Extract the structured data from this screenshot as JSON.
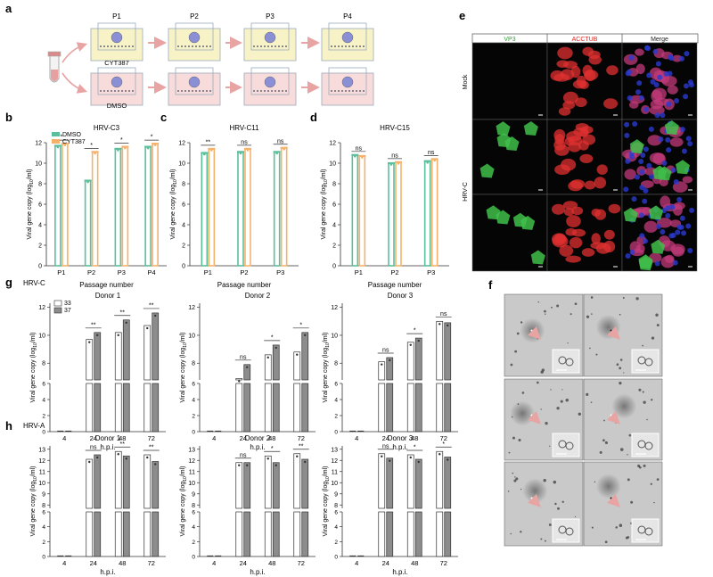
{
  "panels": {
    "a": {
      "letter": "a",
      "p1": "P1",
      "p2": "P2",
      "p3": "P3",
      "p4": "P4",
      "cyt": "CYT387",
      "dmso": "DMSO"
    },
    "b": {
      "letter": "b"
    },
    "c": {
      "letter": "c"
    },
    "d": {
      "letter": "d"
    },
    "e": {
      "letter": "e",
      "col1": "VP3",
      "col2": "ACCTUB",
      "col3": "Merge",
      "row_mock": "Mock",
      "row_hrv": "HRV-C"
    },
    "f": {
      "letter": "f"
    },
    "g": {
      "letter": "g",
      "group_label": "HRV-C"
    },
    "h": {
      "letter": "h",
      "group_label": "HRV-A"
    }
  },
  "colors": {
    "dmso": "#5bbf9b",
    "cyt387": "#f6b26b",
    "t33": "#ffffff",
    "t37": "#8c8c8c",
    "arrow": "#e8a3a3",
    "well_yellow": "#f7f3c6",
    "well_red": "#f8dcdc",
    "vp3": "#3fbf4a",
    "acctub": "#e03030"
  },
  "chart_data": [
    {
      "id": "b",
      "type": "bar",
      "title": "HRV-C3",
      "xlabel": "Passage number",
      "ylabel": "Viral gene copy (log10/ml)",
      "ylim": [
        0,
        12
      ],
      "yticks": [
        0,
        2,
        4,
        6,
        8,
        10,
        12
      ],
      "categories": [
        "P1",
        "P2",
        "P3",
        "P4"
      ],
      "legend": [
        "DMSO",
        "CYT387"
      ],
      "series": [
        {
          "name": "DMSO",
          "values": [
            11.7,
            8.3,
            11.4,
            11.6
          ]
        },
        {
          "name": "CYT387",
          "values": [
            11.9,
            11.1,
            11.6,
            11.9
          ]
        }
      ],
      "sig": [
        "*",
        "*",
        "*",
        "*"
      ]
    },
    {
      "id": "c",
      "type": "bar",
      "title": "HRV-C11",
      "xlabel": "Passage number",
      "ylabel": "Viral gene copy (log10/ml)",
      "ylim": [
        0,
        12
      ],
      "yticks": [
        0,
        2,
        4,
        6,
        8,
        10,
        12
      ],
      "categories": [
        "P1",
        "P2",
        "P3"
      ],
      "series": [
        {
          "name": "DMSO",
          "values": [
            11.0,
            11.1,
            11.1
          ]
        },
        {
          "name": "CYT387",
          "values": [
            11.4,
            11.4,
            11.5
          ]
        }
      ],
      "sig": [
        "**",
        "ns",
        "ns"
      ]
    },
    {
      "id": "d",
      "type": "bar",
      "title": "HRV-C15",
      "xlabel": "Passage number",
      "ylabel": "Viral gene copy (log10/ml)",
      "ylim": [
        0,
        12
      ],
      "yticks": [
        0,
        2,
        4,
        6,
        8,
        10,
        12
      ],
      "categories": [
        "P1",
        "P2",
        "P3"
      ],
      "series": [
        {
          "name": "DMSO",
          "values": [
            10.8,
            10.0,
            10.2
          ]
        },
        {
          "name": "CYT387",
          "values": [
            10.7,
            10.1,
            10.4
          ]
        }
      ],
      "sig": [
        "ns",
        "ns",
        "ns"
      ]
    },
    {
      "id": "g1",
      "type": "bar",
      "title": "Donor 1",
      "xlabel": "h.p.i.",
      "ylabel": "Viral gene copy (log10/ml)",
      "legend": [
        "33",
        "37"
      ],
      "categories": [
        "4",
        "24",
        "48",
        "72"
      ],
      "yticks_low": [
        0,
        2,
        4,
        6
      ],
      "yticks_high": [
        8,
        10,
        12
      ],
      "series": [
        {
          "name": "33",
          "values": [
            0,
            9.7,
            10.2,
            10.7
          ]
        },
        {
          "name": "37",
          "values": [
            0,
            10.2,
            11.1,
            11.6
          ]
        }
      ],
      "sig": [
        "",
        "**",
        "**",
        "**"
      ]
    },
    {
      "id": "g2",
      "type": "bar",
      "title": "Donor 2",
      "xlabel": "h.p.i.",
      "ylabel": "Viral gene copy (log10/ml)",
      "categories": [
        "4",
        "24",
        "48",
        "72"
      ],
      "yticks_low": [
        0,
        2,
        4,
        6
      ],
      "yticks_high": [
        8,
        10,
        12
      ],
      "series": [
        {
          "name": "33",
          "values": [
            0,
            6.9,
            8.6,
            8.8
          ]
        },
        {
          "name": "37",
          "values": [
            0,
            7.9,
            9.3,
            10.2
          ]
        }
      ],
      "sig": [
        "",
        "ns",
        "*",
        "*"
      ]
    },
    {
      "id": "g3",
      "type": "bar",
      "title": "Donor 3",
      "xlabel": "h.p.i.",
      "ylabel": "Viral gene copy (log10/ml)",
      "categories": [
        "4",
        "24",
        "48",
        "72"
      ],
      "yticks_low": [
        0,
        2,
        4,
        6
      ],
      "yticks_high": [
        8,
        10,
        12
      ],
      "series": [
        {
          "name": "33",
          "values": [
            0,
            8.1,
            9.5,
            11.0
          ]
        },
        {
          "name": "37",
          "values": [
            0,
            8.4,
            9.8,
            10.9
          ]
        }
      ],
      "sig": [
        "",
        "ns",
        "*",
        "ns"
      ]
    },
    {
      "id": "h1",
      "type": "bar",
      "title": "Donor 1",
      "xlabel": "h.p.i.",
      "ylabel": "Viral gene copy (log10/ml)",
      "categories": [
        "4",
        "24",
        "48",
        "72"
      ],
      "yticks_low": [
        0,
        2,
        4,
        6
      ],
      "yticks_high": [
        8,
        9,
        10,
        11,
        12,
        13
      ],
      "series": [
        {
          "name": "33",
          "values": [
            0,
            12.1,
            12.8,
            12.5
          ]
        },
        {
          "name": "37",
          "values": [
            0,
            12.5,
            12.4,
            11.9
          ]
        }
      ],
      "sig": [
        "",
        "ns",
        "**",
        "**"
      ]
    },
    {
      "id": "h2",
      "type": "bar",
      "title": "Donor 2",
      "xlabel": "h.p.i.",
      "ylabel": "Viral gene copy (log10/ml)",
      "categories": [
        "4",
        "24",
        "48",
        "72"
      ],
      "yticks_low": [
        0,
        2,
        4,
        6
      ],
      "yticks_high": [
        8,
        9,
        10,
        11,
        12,
        13
      ],
      "series": [
        {
          "name": "33",
          "values": [
            0,
            11.8,
            12.4,
            12.6
          ]
        },
        {
          "name": "37",
          "values": [
            0,
            11.8,
            11.8,
            12.1
          ]
        }
      ],
      "sig": [
        "",
        "ns",
        "*",
        "**"
      ]
    },
    {
      "id": "h3",
      "type": "bar",
      "title": "Donor 3",
      "xlabel": "h.p.i.",
      "ylabel": "Viral gene copy (log10/ml)",
      "categories": [
        "4",
        "24",
        "48",
        "72"
      ],
      "yticks_low": [
        0,
        2,
        4,
        6
      ],
      "yticks_high": [
        8,
        9,
        10,
        11,
        12,
        13
      ],
      "series": [
        {
          "name": "33",
          "values": [
            0,
            12.6,
            12.5,
            12.8
          ]
        },
        {
          "name": "37",
          "values": [
            0,
            12.2,
            12.1,
            12.3
          ]
        }
      ],
      "sig": [
        "",
        "ns",
        "*",
        "*"
      ]
    }
  ]
}
